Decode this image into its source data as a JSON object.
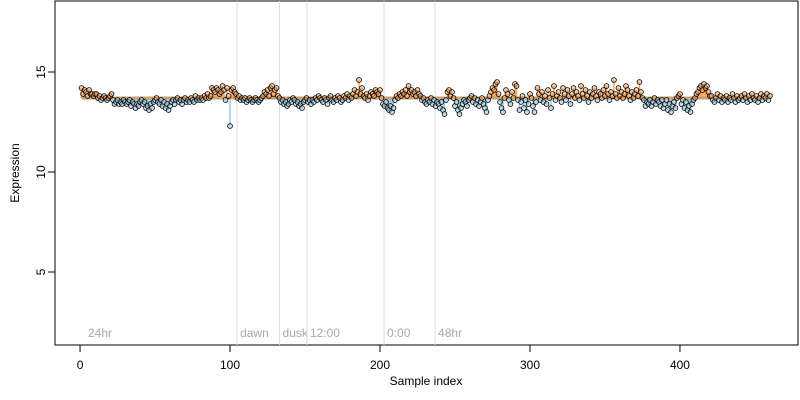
{
  "chart_data": {
    "type": "scatter",
    "xlabel": "Sample index",
    "ylabel": "Expression",
    "xlim": [
      -16.7,
      478.7
    ],
    "ylim": [
      1.35,
      18.55
    ],
    "xticks": [
      0,
      100,
      200,
      300,
      400
    ],
    "yticks": [
      5,
      10,
      15
    ],
    "baseline": 13.7,
    "baseline_color": "#c9a070",
    "above_color": "#f4a460",
    "below_color": "#9ecae1",
    "markers": [
      {
        "x": 3.3,
        "label": "24hr",
        "line": false
      },
      {
        "x": 104.7,
        "label": "dawn",
        "line": true
      },
      {
        "x": 133,
        "label": "dusk",
        "line": true
      },
      {
        "x": 151.3,
        "label": "12:00",
        "line": true
      },
      {
        "x": 202.7,
        "label": "0:00",
        "line": true
      },
      {
        "x": 236.7,
        "label": "48hr",
        "line": true
      }
    ],
    "x": [
      1,
      2,
      3,
      4,
      5,
      6,
      7,
      8,
      9,
      10,
      11,
      12,
      13,
      14,
      15,
      16,
      17,
      18,
      19,
      20,
      21,
      22,
      23,
      24,
      25,
      26,
      27,
      28,
      29,
      30,
      31,
      32,
      33,
      34,
      35,
      36,
      37,
      38,
      39,
      40,
      41,
      42,
      43,
      44,
      45,
      46,
      47,
      48,
      49,
      50,
      51,
      52,
      53,
      54,
      55,
      56,
      57,
      58,
      59,
      60,
      61,
      62,
      63,
      64,
      65,
      66,
      67,
      68,
      69,
      70,
      71,
      72,
      73,
      74,
      75,
      76,
      77,
      78,
      79,
      80,
      81,
      82,
      83,
      84,
      85,
      86,
      87,
      88,
      89,
      90,
      91,
      92,
      93,
      94,
      95,
      96,
      97,
      98,
      99,
      100,
      101,
      102,
      103,
      104,
      105,
      106,
      107,
      108,
      109,
      110,
      111,
      112,
      113,
      114,
      115,
      116,
      117,
      118,
      119,
      120,
      121,
      122,
      123,
      124,
      125,
      126,
      127,
      128,
      129,
      130,
      131,
      132,
      133,
      134,
      135,
      136,
      137,
      138,
      139,
      140,
      141,
      142,
      143,
      144,
      145,
      146,
      147,
      148,
      149,
      150,
      151,
      152,
      153,
      154,
      155,
      156,
      157,
      158,
      159,
      160,
      161,
      162,
      163,
      164,
      165,
      166,
      167,
      168,
      169,
      170,
      171,
      172,
      173,
      174,
      175,
      176,
      177,
      178,
      179,
      180,
      181,
      182,
      183,
      184,
      185,
      186,
      187,
      188,
      189,
      190,
      191,
      192,
      193,
      194,
      195,
      196,
      197,
      198,
      199,
      200,
      201,
      202,
      203,
      204,
      205,
      206,
      207,
      208,
      209,
      210,
      211,
      212,
      213,
      214,
      215,
      216,
      217,
      218,
      219,
      220,
      221,
      222,
      223,
      224,
      225,
      226,
      227,
      228,
      229,
      230,
      231,
      232,
      233,
      234,
      235,
      236,
      237,
      238,
      239,
      240,
      241,
      242,
      243,
      244,
      245,
      246,
      247,
      248,
      249,
      250,
      251,
      252,
      253,
      254,
      255,
      256,
      257,
      258,
      259,
      260,
      261,
      262,
      263,
      264,
      265,
      266,
      267,
      268,
      269,
      270,
      271,
      272,
      273,
      274,
      275,
      276,
      277,
      278,
      279,
      280,
      281,
      282,
      283,
      284,
      285,
      286,
      287,
      288,
      289,
      290,
      291,
      292,
      293,
      294,
      295,
      296,
      297,
      298,
      299,
      300,
      301,
      302,
      303,
      304,
      305,
      306,
      307,
      308,
      309,
      310,
      311,
      312,
      313,
      314,
      315,
      316,
      317,
      318,
      319,
      320,
      321,
      322,
      323,
      324,
      325,
      326,
      327,
      328,
      329,
      330,
      331,
      332,
      333,
      334,
      335,
      336,
      337,
      338,
      339,
      340,
      341,
      342,
      343,
      344,
      345,
      346,
      347,
      348,
      349,
      350,
      351,
      352,
      353,
      354,
      355,
      356,
      357,
      358,
      359,
      360,
      361,
      362,
      363,
      364,
      365,
      366,
      367,
      368,
      369,
      370,
      371,
      372,
      373,
      374,
      375,
      376,
      377,
      378,
      379,
      380,
      381,
      382,
      383,
      384,
      385,
      386,
      387,
      388,
      389,
      390,
      391,
      392,
      393,
      394,
      395,
      396,
      397,
      398,
      399,
      400,
      401,
      402,
      403,
      404,
      405,
      406,
      407,
      408,
      409,
      410,
      411,
      412,
      413,
      414,
      415,
      416,
      417,
      418,
      419,
      420,
      421,
      422,
      423,
      424,
      425,
      426,
      427,
      428,
      429,
      430,
      431,
      432,
      433,
      434,
      435,
      436,
      437,
      438,
      439,
      440,
      441,
      442,
      443,
      444,
      445,
      446,
      447,
      448,
      449,
      450,
      451,
      452,
      453,
      454,
      455,
      456,
      457,
      458,
      459,
      460
    ],
    "values": [
      14.2,
      13.9,
      14.1,
      14.0,
      13.8,
      14.1,
      13.9,
      13.9,
      13.8,
      13.9,
      13.9,
      13.7,
      13.8,
      13.6,
      13.7,
      13.8,
      13.7,
      13.6,
      13.7,
      13.8,
      13.9,
      13.6,
      13.4,
      13.5,
      13.6,
      13.4,
      13.5,
      13.4,
      13.6,
      13.5,
      13.4,
      13.5,
      13.6,
      13.3,
      13.5,
      13.4,
      13.2,
      13.4,
      13.3,
      13.5,
      13.6,
      13.4,
      13.5,
      13.2,
      13.3,
      13.1,
      13.4,
      13.2,
      13.5,
      13.6,
      13.7,
      13.5,
      13.4,
      13.6,
      13.3,
      13.5,
      13.2,
      13.4,
      13.1,
      13.3,
      13.5,
      13.6,
      13.4,
      13.6,
      13.7,
      13.5,
      13.6,
      13.4,
      13.6,
      13.7,
      13.5,
      13.6,
      13.5,
      13.7,
      13.6,
      13.5,
      13.8,
      13.6,
      13.7,
      13.6,
      13.7,
      13.6,
      13.8,
      13.7,
      13.9,
      13.7,
      13.8,
      14.2,
      14.1,
      14.0,
      14.2,
      14.1,
      13.9,
      14.0,
      14.3,
      14.1,
      13.6,
      14.2,
      13.8,
      12.3,
      14.1,
      14.2,
      14.0,
      13.9,
      13.7,
      13.8,
      13.6,
      13.7,
      13.6,
      13.7,
      13.5,
      13.6,
      13.7,
      13.6,
      13.5,
      13.6,
      13.7,
      13.6,
      13.5,
      13.6,
      13.7,
      13.8,
      14.0,
      13.9,
      14.1,
      13.8,
      14.2,
      14.3,
      13.9,
      14.1,
      14.2,
      13.8,
      13.7,
      13.5,
      13.6,
      13.4,
      13.5,
      13.3,
      13.4,
      13.6,
      13.5,
      13.7,
      13.6,
      13.4,
      13.5,
      13.3,
      13.4,
      13.2,
      13.5,
      13.6,
      13.7,
      13.5,
      13.6,
      13.4,
      13.6,
      13.5,
      13.7,
      13.6,
      13.8,
      13.7,
      13.6,
      13.5,
      13.7,
      13.6,
      13.4,
      13.7,
      13.8,
      13.6,
      13.5,
      13.7,
      13.6,
      13.8,
      13.7,
      13.5,
      13.6,
      13.8,
      13.7,
      13.9,
      13.6,
      13.8,
      13.7,
      13.9,
      14.1,
      13.8,
      14.0,
      14.6,
      13.9,
      14.2,
      13.8,
      13.7,
      13.9,
      13.6,
      13.8,
      14.0,
      13.9,
      13.8,
      14.1,
      14.0,
      13.9,
      14.1,
      13.7,
      13.4,
      13.3,
      13.5,
      13.2,
      13.1,
      13.3,
      13.0,
      13.2,
      13.6,
      13.8,
      13.7,
      13.9,
      13.8,
      14.0,
      13.9,
      14.1,
      13.8,
      14.3,
      14.0,
      14.1,
      13.9,
      14.0,
      13.8,
      14.1,
      13.9,
      13.8,
      13.6,
      13.7,
      13.5,
      13.4,
      13.6,
      13.5,
      13.7,
      13.4,
      13.6,
      13.3,
      13.5,
      13.4,
      13.2,
      13.5,
      13.1,
      12.9,
      13.6,
      14.0,
      14.1,
      13.8,
      14.0,
      13.7,
      13.3,
      13.5,
      13.1,
      12.9,
      13.2,
      13.4,
      13.6,
      13.5,
      13.3,
      13.6,
      13.7,
      13.8,
      13.5,
      13.7,
      13.4,
      13.6,
      13.3,
      13.5,
      13.7,
      13.4,
      13.2,
      13.0,
      13.6,
      13.8,
      14.0,
      14.2,
      14.1,
      14.4,
      14.5,
      13.9,
      13.5,
      13.2,
      13.0,
      13.7,
      14.1,
      13.9,
      13.6,
      13.4,
      14.0,
      13.7,
      14.4,
      14.3,
      13.6,
      13.1,
      13.5,
      13.8,
      13.2,
      13.6,
      13.0,
      13.4,
      13.9,
      13.7,
      13.3,
      13.0,
      13.5,
      14.2,
      13.9,
      13.6,
      14.0,
      13.5,
      13.8,
      13.4,
      14.1,
      13.7,
      13.2,
      13.9,
      14.3,
      13.6,
      13.8,
      14.0,
      13.7,
      13.5,
      14.2,
      13.9,
      13.6,
      14.1,
      13.8,
      13.4,
      13.9,
      14.2,
      13.7,
      14.0,
      13.8,
      13.6,
      14.3,
      13.9,
      13.7,
      14.1,
      13.8,
      13.5,
      14.0,
      13.7,
      13.9,
      14.2,
      13.8,
      13.6,
      14.0,
      13.9,
      13.7,
      14.1,
      13.8,
      14.3,
      13.9,
      13.6,
      14.0,
      13.8,
      14.6,
      13.9,
      13.7,
      14.2,
      13.8,
      14.0,
      13.7,
      13.9,
      14.3,
      14.1,
      13.8,
      13.6,
      14.0,
      13.7,
      13.9,
      14.1,
      13.8,
      14.5,
      14.0,
      13.7,
      13.6,
      13.3,
      13.5,
      13.4,
      13.6,
      13.3,
      13.5,
      13.7,
      13.4,
      13.6,
      13.5,
      13.3,
      13.6,
      13.2,
      13.4,
      13.6,
      13.1,
      13.4,
      13.0,
      13.3,
      13.5,
      13.2,
      13.7,
      13.8,
      13.9,
      13.4,
      13.6,
      13.2,
      13.5,
      13.1,
      13.3,
      13.0,
      13.4,
      13.6,
      13.7,
      13.9,
      14.0,
      14.2,
      14.3,
      14.1,
      14.4,
      14.2,
      14.3,
      14.0,
      13.8,
      13.8,
      13.6,
      13.5,
      13.7,
      13.9,
      13.6,
      13.8,
      13.5,
      13.7,
      13.6,
      13.8,
      13.5,
      13.7,
      13.6,
      13.9,
      13.7,
      13.5,
      13.8,
      13.6,
      13.7,
      13.8,
      13.6,
      13.9,
      13.7,
      13.5,
      13.8,
      13.6,
      13.9,
      13.7,
      13.6,
      13.8,
      13.5,
      13.7,
      13.9,
      13.6,
      13.8,
      13.7,
      13.9,
      13.6,
      13.8
    ]
  }
}
